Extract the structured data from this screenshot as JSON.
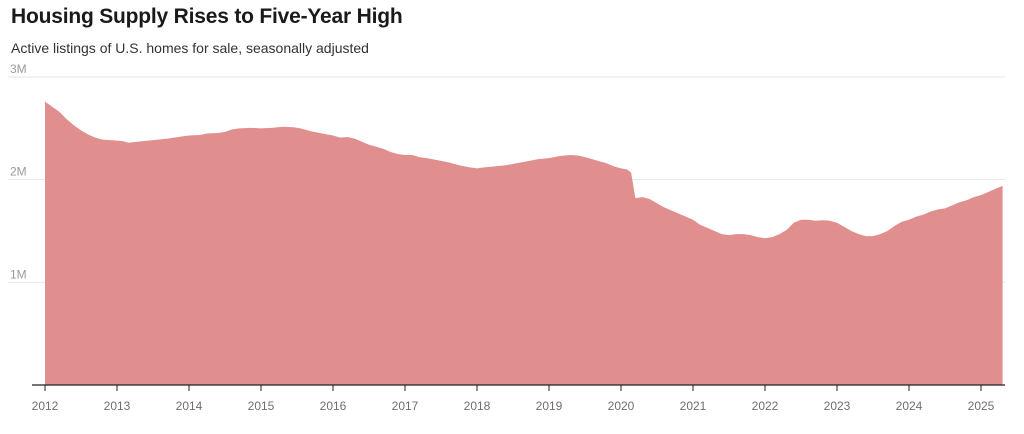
{
  "chart_data": {
    "type": "area",
    "title": "Housing Supply Rises to Five-Year High",
    "subtitle": "Active listings of U.S. homes for sale, seasonally adjusted",
    "xlabel": "",
    "ylabel": "",
    "ylim": [
      0,
      3000000
    ],
    "xlim": [
      2012.0,
      2025.33
    ],
    "grid": true,
    "y_ticks": [
      {
        "value": 1000000,
        "label": "1M"
      },
      {
        "value": 2000000,
        "label": "2M"
      },
      {
        "value": 3000000,
        "label": "3M"
      }
    ],
    "x_ticks": [
      {
        "value": 2012,
        "label": "2012"
      },
      {
        "value": 2013,
        "label": "2013"
      },
      {
        "value": 2014,
        "label": "2014"
      },
      {
        "value": 2015,
        "label": "2015"
      },
      {
        "value": 2016,
        "label": "2016"
      },
      {
        "value": 2017,
        "label": "2017"
      },
      {
        "value": 2018,
        "label": "2018"
      },
      {
        "value": 2019,
        "label": "2019"
      },
      {
        "value": 2020,
        "label": "2020"
      },
      {
        "value": 2021,
        "label": "2021"
      },
      {
        "value": 2022,
        "label": "2022"
      },
      {
        "value": 2023,
        "label": "2023"
      },
      {
        "value": 2024,
        "label": "2024"
      },
      {
        "value": 2025,
        "label": "2025"
      }
    ],
    "series": [
      {
        "color": "#e08e8e",
        "points": [
          [
            2012.0,
            2760000
          ],
          [
            2012.1,
            2710000
          ],
          [
            2012.2,
            2660000
          ],
          [
            2012.3,
            2590000
          ],
          [
            2012.4,
            2530000
          ],
          [
            2012.5,
            2480000
          ],
          [
            2012.6,
            2440000
          ],
          [
            2012.7,
            2410000
          ],
          [
            2012.8,
            2390000
          ],
          [
            2012.9,
            2385000
          ],
          [
            2013.0,
            2380000
          ],
          [
            2013.08,
            2375000
          ],
          [
            2013.16,
            2360000
          ],
          [
            2013.3,
            2370000
          ],
          [
            2013.5,
            2385000
          ],
          [
            2013.7,
            2400000
          ],
          [
            2013.9,
            2420000
          ],
          [
            2014.0,
            2430000
          ],
          [
            2014.15,
            2435000
          ],
          [
            2014.25,
            2450000
          ],
          [
            2014.4,
            2455000
          ],
          [
            2014.5,
            2465000
          ],
          [
            2014.6,
            2490000
          ],
          [
            2014.7,
            2500000
          ],
          [
            2014.85,
            2505000
          ],
          [
            2015.0,
            2500000
          ],
          [
            2015.15,
            2505000
          ],
          [
            2015.3,
            2515000
          ],
          [
            2015.45,
            2510000
          ],
          [
            2015.55,
            2500000
          ],
          [
            2015.7,
            2470000
          ],
          [
            2015.85,
            2450000
          ],
          [
            2016.0,
            2430000
          ],
          [
            2016.1,
            2410000
          ],
          [
            2016.2,
            2415000
          ],
          [
            2016.3,
            2400000
          ],
          [
            2016.4,
            2370000
          ],
          [
            2016.5,
            2340000
          ],
          [
            2016.6,
            2320000
          ],
          [
            2016.7,
            2300000
          ],
          [
            2016.8,
            2270000
          ],
          [
            2016.9,
            2250000
          ],
          [
            2017.0,
            2240000
          ],
          [
            2017.1,
            2240000
          ],
          [
            2017.2,
            2220000
          ],
          [
            2017.3,
            2210000
          ],
          [
            2017.45,
            2190000
          ],
          [
            2017.6,
            2170000
          ],
          [
            2017.75,
            2140000
          ],
          [
            2017.9,
            2120000
          ],
          [
            2018.0,
            2110000
          ],
          [
            2018.1,
            2120000
          ],
          [
            2018.25,
            2130000
          ],
          [
            2018.4,
            2140000
          ],
          [
            2018.55,
            2160000
          ],
          [
            2018.7,
            2180000
          ],
          [
            2018.85,
            2200000
          ],
          [
            2019.0,
            2210000
          ],
          [
            2019.15,
            2230000
          ],
          [
            2019.3,
            2240000
          ],
          [
            2019.4,
            2235000
          ],
          [
            2019.5,
            2220000
          ],
          [
            2019.6,
            2200000
          ],
          [
            2019.7,
            2180000
          ],
          [
            2019.8,
            2160000
          ],
          [
            2019.9,
            2130000
          ],
          [
            2020.0,
            2110000
          ],
          [
            2020.08,
            2100000
          ],
          [
            2020.14,
            2070000
          ],
          [
            2020.2,
            1820000
          ],
          [
            2020.3,
            1830000
          ],
          [
            2020.4,
            1810000
          ],
          [
            2020.5,
            1770000
          ],
          [
            2020.6,
            1730000
          ],
          [
            2020.7,
            1700000
          ],
          [
            2020.8,
            1670000
          ],
          [
            2020.9,
            1640000
          ],
          [
            2021.0,
            1610000
          ],
          [
            2021.1,
            1560000
          ],
          [
            2021.2,
            1530000
          ],
          [
            2021.3,
            1500000
          ],
          [
            2021.4,
            1470000
          ],
          [
            2021.5,
            1460000
          ],
          [
            2021.6,
            1470000
          ],
          [
            2021.7,
            1470000
          ],
          [
            2021.8,
            1460000
          ],
          [
            2021.9,
            1440000
          ],
          [
            2022.0,
            1430000
          ],
          [
            2022.1,
            1440000
          ],
          [
            2022.2,
            1470000
          ],
          [
            2022.3,
            1510000
          ],
          [
            2022.4,
            1580000
          ],
          [
            2022.5,
            1610000
          ],
          [
            2022.6,
            1610000
          ],
          [
            2022.7,
            1600000
          ],
          [
            2022.8,
            1605000
          ],
          [
            2022.9,
            1600000
          ],
          [
            2023.0,
            1580000
          ],
          [
            2023.1,
            1540000
          ],
          [
            2023.2,
            1500000
          ],
          [
            2023.3,
            1470000
          ],
          [
            2023.4,
            1450000
          ],
          [
            2023.5,
            1450000
          ],
          [
            2023.6,
            1470000
          ],
          [
            2023.7,
            1500000
          ],
          [
            2023.8,
            1550000
          ],
          [
            2023.9,
            1590000
          ],
          [
            2024.0,
            1610000
          ],
          [
            2024.1,
            1640000
          ],
          [
            2024.2,
            1660000
          ],
          [
            2024.3,
            1690000
          ],
          [
            2024.4,
            1710000
          ],
          [
            2024.5,
            1720000
          ],
          [
            2024.6,
            1750000
          ],
          [
            2024.7,
            1780000
          ],
          [
            2024.8,
            1800000
          ],
          [
            2024.9,
            1830000
          ],
          [
            2025.0,
            1850000
          ],
          [
            2025.1,
            1880000
          ],
          [
            2025.2,
            1910000
          ],
          [
            2025.3,
            1940000
          ]
        ]
      }
    ]
  }
}
